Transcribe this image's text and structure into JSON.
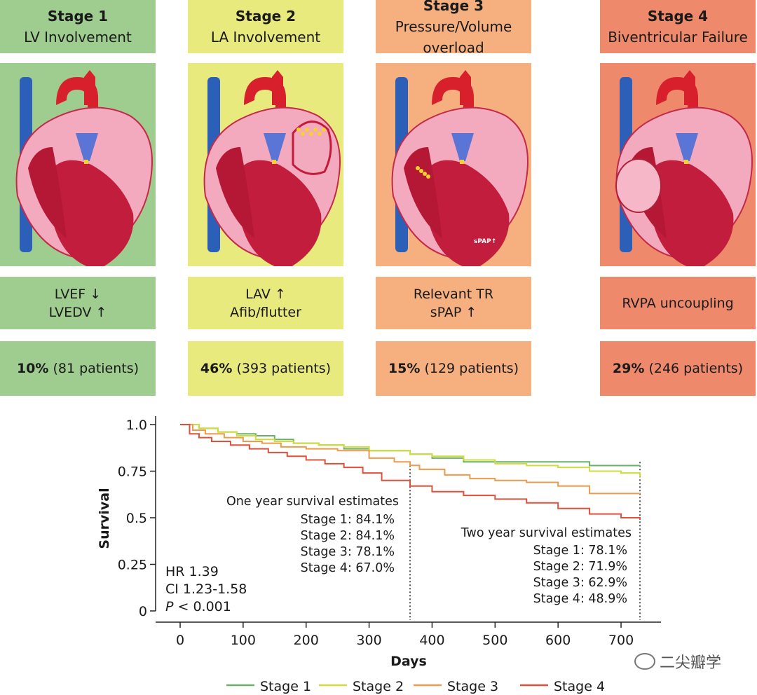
{
  "stages": [
    {
      "title": "Stage 1",
      "subtitle": "LV Involvement",
      "markers": [
        "LVEF ↓",
        "LVEDV ↑"
      ],
      "pct": "10%",
      "patients": "(81 patients)",
      "bg": "#9fcc8f",
      "img_bg": "#9fcc8f"
    },
    {
      "title": "Stage 2",
      "subtitle": "LA Involvement",
      "markers": [
        "LAV ↑",
        "Afib/flutter"
      ],
      "pct": "46%",
      "patients": "(393 patients)",
      "bg": "#e8ea7e",
      "img_bg": "#e8ea7e"
    },
    {
      "title": "Stage 3",
      "subtitle": "Pressure/Volume overload",
      "markers": [
        "Relevant TR",
        "sPAP ↑"
      ],
      "pct": "15%",
      "patients": "(129 patients)",
      "bg": "#f6b07f",
      "img_bg": "#f6b07f",
      "image_label": "sPAP↑"
    },
    {
      "title": "Stage 4",
      "subtitle": "Biventricular Failure",
      "markers": [
        "RVPA uncoupling"
      ],
      "pct": "29%",
      "patients": "(246 patients)",
      "bg": "#ee8a6b",
      "img_bg": "#ee8a6b"
    }
  ],
  "chart_data": {
    "type": "line",
    "xlabel": "Days",
    "ylabel": "Survival",
    "xlim": [
      0,
      730
    ],
    "ylim": [
      0,
      1.0
    ],
    "xticks": [
      0,
      100,
      200,
      300,
      400,
      500,
      600,
      700
    ],
    "yticks": [
      0,
      0.25,
      0.5,
      0.75,
      1.0
    ],
    "ytick_labels": [
      "0",
      "0.25",
      "0.5",
      "0.75",
      "1.0"
    ],
    "vlines": [
      365,
      730
    ],
    "series": [
      {
        "name": "Stage 1",
        "color": "#6aaf6a",
        "x": [
          0,
          30,
          60,
          90,
          120,
          150,
          180,
          220,
          260,
          300,
          365,
          400,
          450,
          500,
          550,
          600,
          650,
          700,
          730
        ],
        "y": [
          1.0,
          0.98,
          0.96,
          0.95,
          0.94,
          0.92,
          0.9,
          0.89,
          0.87,
          0.86,
          0.841,
          0.82,
          0.8,
          0.8,
          0.8,
          0.8,
          0.78,
          0.78,
          0.781
        ]
      },
      {
        "name": "Stage 2",
        "color": "#cfdc3c",
        "x": [
          0,
          30,
          60,
          90,
          120,
          150,
          180,
          220,
          260,
          300,
          365,
          400,
          450,
          500,
          550,
          600,
          650,
          700,
          730
        ],
        "y": [
          1.0,
          0.98,
          0.96,
          0.94,
          0.92,
          0.91,
          0.9,
          0.89,
          0.88,
          0.86,
          0.841,
          0.83,
          0.81,
          0.79,
          0.78,
          0.77,
          0.75,
          0.74,
          0.719
        ]
      },
      {
        "name": "Stage 3",
        "color": "#ee9a4b",
        "x": [
          0,
          20,
          40,
          70,
          100,
          130,
          160,
          200,
          250,
          300,
          340,
          365,
          380,
          420,
          460,
          500,
          550,
          600,
          650,
          700,
          730
        ],
        "y": [
          1.0,
          0.97,
          0.95,
          0.93,
          0.91,
          0.9,
          0.88,
          0.87,
          0.86,
          0.82,
          0.8,
          0.781,
          0.76,
          0.73,
          0.71,
          0.7,
          0.69,
          0.67,
          0.63,
          0.63,
          0.629
        ]
      },
      {
        "name": "Stage 4",
        "color": "#e0503a",
        "x": [
          0,
          15,
          30,
          50,
          80,
          110,
          140,
          170,
          200,
          230,
          260,
          290,
          320,
          365,
          400,
          450,
          500,
          550,
          600,
          650,
          700,
          730
        ],
        "y": [
          1.0,
          0.95,
          0.93,
          0.91,
          0.89,
          0.87,
          0.85,
          0.83,
          0.81,
          0.79,
          0.77,
          0.74,
          0.7,
          0.67,
          0.64,
          0.62,
          0.6,
          0.58,
          0.55,
          0.52,
          0.5,
          0.489
        ]
      }
    ],
    "annotations": {
      "one_year": {
        "title": "One year survival estimates",
        "lines": [
          "Stage 1: 84.1%",
          "Stage 2: 84.1%",
          "Stage 3: 78.1%",
          "Stage 4: 67.0%"
        ]
      },
      "two_year": {
        "title": "Two year survival estimates",
        "lines": [
          "Stage 1: 78.1%",
          "Stage 2: 71.9%",
          "Stage 3: 62.9%",
          "Stage 4: 48.9%"
        ]
      },
      "stats": {
        "hr": "HR 1.39",
        "ci": "CI 1.23-1.58",
        "p_symbol": "P",
        "p_value": " < 0.001"
      }
    },
    "legend_position": "bottom"
  },
  "watermark": "二尖瓣学"
}
